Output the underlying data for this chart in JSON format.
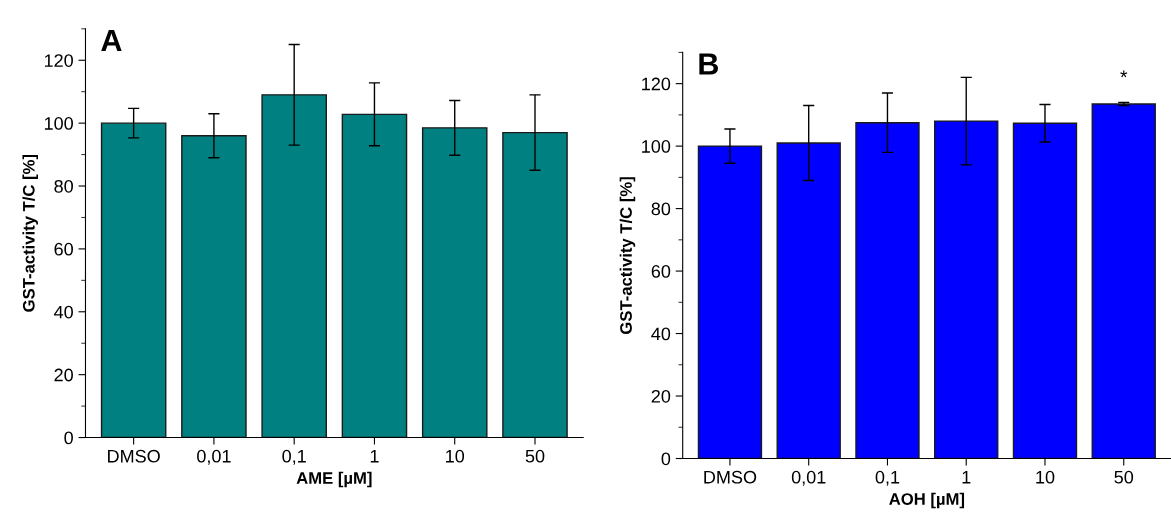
{
  "chart_data": [
    {
      "type": "bar",
      "title": "A",
      "xlabel": "AME [µM]",
      "ylabel": "GST-activity T/C [%]",
      "categories": [
        "DMSO",
        "0,01",
        "0,1",
        "1",
        "10",
        "50"
      ],
      "series": [
        {
          "color": "#008080",
          "values": [
            100,
            96,
            109,
            102.8,
            98.5,
            97
          ],
          "errors": [
            4.7,
            7,
            16,
            10,
            8.7,
            12
          ]
        }
      ],
      "ylim": [
        0,
        130
      ],
      "yticks": [
        0,
        20,
        40,
        60,
        80,
        100,
        120
      ],
      "grid": false,
      "legend": false
    },
    {
      "type": "bar",
      "title": "B",
      "xlabel": "AOH [µM]",
      "ylabel": "GST-activity T/C [%]",
      "categories": [
        "DMSO",
        "0,01",
        "0,1",
        "1",
        "10",
        "50"
      ],
      "series": [
        {
          "color": "#0000ff",
          "values": [
            100,
            101,
            107.5,
            108,
            107.3,
            113.5
          ],
          "errors": [
            5.5,
            12,
            9.5,
            14,
            6,
            0.5
          ]
        }
      ],
      "annotations": [
        "*"
      ],
      "ylim": [
        0,
        130
      ],
      "yticks": [
        0,
        20,
        40,
        60,
        80,
        100,
        120
      ],
      "grid": false,
      "legend": false
    }
  ]
}
